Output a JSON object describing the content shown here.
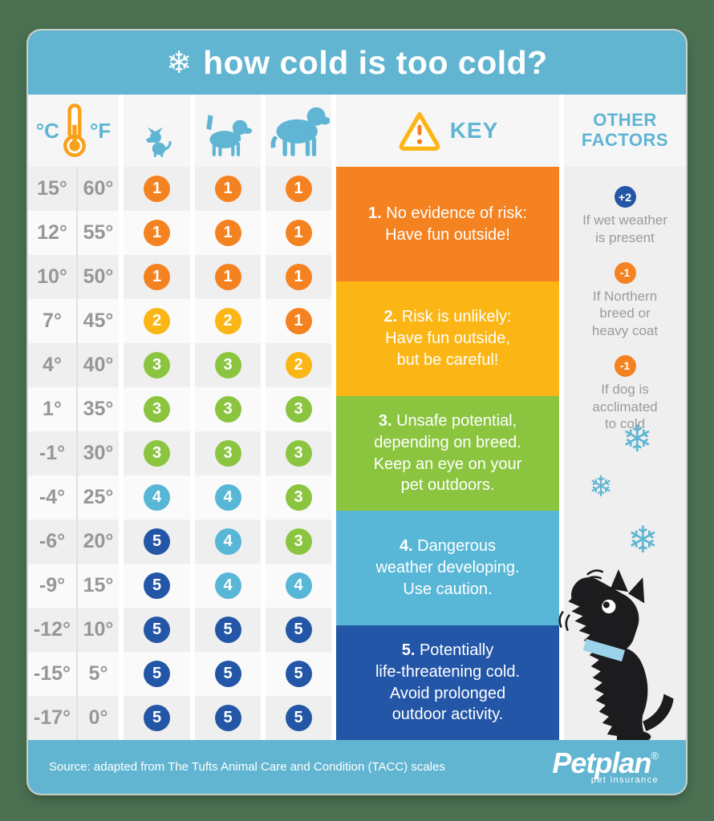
{
  "header": {
    "title": "how cold is too cold?"
  },
  "icons": {
    "snowflake": "❄"
  },
  "table": {
    "units": {
      "c": "°C",
      "f": "°F"
    },
    "dog_columns": [
      "small-dog",
      "medium-dog",
      "large-dog"
    ],
    "rows": [
      {
        "c": "15°",
        "f": "60°",
        "ratings": [
          1,
          1,
          1
        ]
      },
      {
        "c": "12°",
        "f": "55°",
        "ratings": [
          1,
          1,
          1
        ]
      },
      {
        "c": "10°",
        "f": "50°",
        "ratings": [
          1,
          1,
          1
        ]
      },
      {
        "c": "7°",
        "f": "45°",
        "ratings": [
          2,
          2,
          1
        ]
      },
      {
        "c": "4°",
        "f": "40°",
        "ratings": [
          3,
          3,
          2
        ]
      },
      {
        "c": "1°",
        "f": "35°",
        "ratings": [
          3,
          3,
          3
        ]
      },
      {
        "c": "-1°",
        "f": "30°",
        "ratings": [
          3,
          3,
          3
        ]
      },
      {
        "c": "-4°",
        "f": "25°",
        "ratings": [
          4,
          4,
          3
        ]
      },
      {
        "c": "-6°",
        "f": "20°",
        "ratings": [
          5,
          4,
          3
        ]
      },
      {
        "c": "-9°",
        "f": "15°",
        "ratings": [
          5,
          4,
          4
        ]
      },
      {
        "c": "-12°",
        "f": "10°",
        "ratings": [
          5,
          5,
          5
        ]
      },
      {
        "c": "-15°",
        "f": "5°",
        "ratings": [
          5,
          5,
          5
        ]
      },
      {
        "c": "-17°",
        "f": "0°",
        "ratings": [
          5,
          5,
          5
        ]
      }
    ]
  },
  "key": {
    "label": "KEY",
    "items": [
      {
        "number": "1",
        "text": "No evidence of risk:\nHave fun outside!"
      },
      {
        "number": "2",
        "text": "Risk is unlikely:\nHave fun outside,\nbut be careful!"
      },
      {
        "number": "3",
        "text": "Unsafe potential,\ndepending on breed.\nKeep an eye on your\npet outdoors."
      },
      {
        "number": "4",
        "text": "Dangerous\nweather developing.\nUse caution."
      },
      {
        "number": "5",
        "text": "Potentially\nlife-threatening cold.\nAvoid prolonged\noutdoor activity."
      }
    ]
  },
  "other_factors": {
    "label": "OTHER\nFACTORS",
    "items": [
      {
        "value": "+2",
        "text": "If wet weather\nis present"
      },
      {
        "value": "-1",
        "text": "If Northern\nbreed or\nheavy coat"
      },
      {
        "value": "-1",
        "text": "If dog is\nacclimated\nto cold"
      }
    ]
  },
  "footer": {
    "source": "Source: adapted from The Tufts Animal Care and Condition (TACC) scales",
    "brand": "Petplan",
    "registered": "®",
    "tagline": "pet insurance"
  },
  "colors": {
    "background": "#4C7152",
    "header_bar": "#62B5D1",
    "accent_blue": "#5FB5D3",
    "text_gray": "#97979A",
    "ratings": {
      "1": "#F58220",
      "2": "#FBB615",
      "3": "#8BC540",
      "4": "#58B7D6",
      "5": "#2456A8"
    },
    "plus_badge": "#2456A8",
    "minus_badge": "#F58220"
  },
  "chart_data": {
    "type": "table",
    "title": "how cold is too cold?",
    "columns": [
      "temp_c",
      "temp_f",
      "small_dog_risk",
      "medium_dog_risk",
      "large_dog_risk"
    ],
    "rows": [
      [
        15,
        60,
        1,
        1,
        1
      ],
      [
        12,
        55,
        1,
        1,
        1
      ],
      [
        10,
        50,
        1,
        1,
        1
      ],
      [
        7,
        45,
        2,
        2,
        1
      ],
      [
        4,
        40,
        3,
        3,
        2
      ],
      [
        1,
        35,
        3,
        3,
        3
      ],
      [
        -1,
        30,
        3,
        3,
        3
      ],
      [
        -4,
        25,
        4,
        4,
        3
      ],
      [
        -6,
        20,
        5,
        4,
        3
      ],
      [
        -9,
        15,
        5,
        4,
        4
      ],
      [
        -12,
        10,
        5,
        5,
        5
      ],
      [
        -15,
        5,
        5,
        5,
        5
      ],
      [
        -17,
        0,
        5,
        5,
        5
      ]
    ],
    "risk_scale": {
      "1": "No evidence of risk: Have fun outside!",
      "2": "Risk is unlikely: Have fun outside, but be careful!",
      "3": "Unsafe potential, depending on breed. Keep an eye on your pet outdoors.",
      "4": "Dangerous weather developing. Use caution.",
      "5": "Potentially life-threatening cold. Avoid prolonged outdoor activity."
    },
    "modifiers": [
      {
        "value": "+2",
        "condition": "If wet weather is present"
      },
      {
        "value": "-1",
        "condition": "If Northern breed or heavy coat"
      },
      {
        "value": "-1",
        "condition": "If dog is acclimated to cold"
      }
    ]
  }
}
